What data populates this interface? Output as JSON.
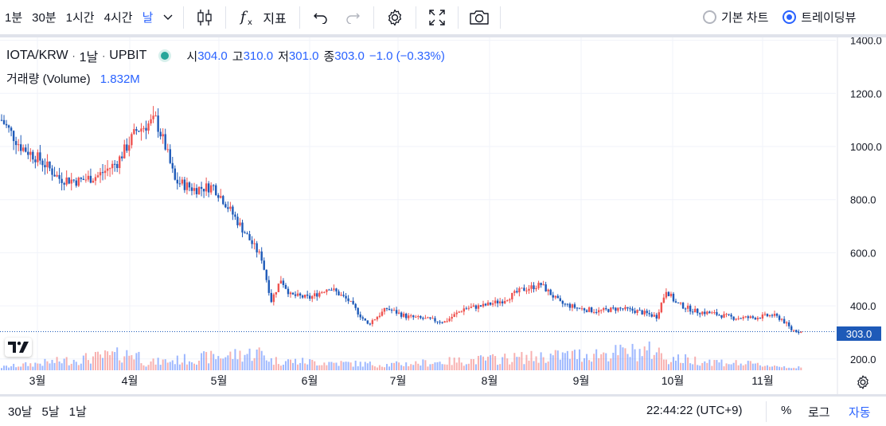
{
  "toolbar": {
    "intervals": [
      "1분",
      "30분",
      "1시간",
      "4시간",
      "날"
    ],
    "active_interval": "날",
    "indicators_label": "지표",
    "chart_modes": [
      "기본 차트",
      "트레이딩뷰"
    ],
    "active_mode": "트레이딩뷰",
    "icons": [
      "chevron-down-icon",
      "candles-icon",
      "fx-icon",
      "undo-icon",
      "redo-icon",
      "settings-gear-icon",
      "fullscreen-icon",
      "camera-icon"
    ]
  },
  "legend": {
    "symbol": "IOTA/KRW",
    "interval": "1날",
    "exchange": "UPBIT",
    "open_label": "시",
    "open": "304.0",
    "high_label": "고",
    "high": "310.0",
    "low_label": "저",
    "low": "301.0",
    "close_label": "종",
    "close": "303.0",
    "change": "−1.0 (−0.33%)",
    "volume_label": "거래량 (Volume)",
    "volume": "1.832M"
  },
  "price_badge": "303.0",
  "bottom": {
    "ranges": [
      "30날",
      "5날",
      "1날"
    ],
    "clock": "22:44:22 (UTC+9)",
    "percent": "%",
    "log": "로그",
    "auto": "자동"
  },
  "colors": {
    "up": "#ef5350",
    "down": "#1e5ab8",
    "accent": "#2962ff",
    "grid": "#f0f3fa"
  },
  "chart_data": {
    "type": "candlestick",
    "y_ticks": [
      "1400.0",
      "1200.0",
      "1000.0",
      "800.0",
      "600.0",
      "400.0",
      "200.0"
    ],
    "x_ticks": [
      "3월",
      "4월",
      "5월",
      "6월",
      "7월",
      "8월",
      "9월",
      "10월",
      "11월"
    ],
    "ylim": [
      180,
      1410
    ],
    "last_price": 303.0,
    "weekly_close_trend": [
      [
        0,
        1100
      ],
      [
        2,
        1000
      ],
      [
        4,
        950
      ],
      [
        6,
        880
      ],
      [
        8,
        870
      ],
      [
        10,
        890
      ],
      [
        12,
        940
      ],
      [
        14,
        1060
      ],
      [
        16,
        1100
      ],
      [
        17,
        1000
      ],
      [
        18,
        870
      ],
      [
        20,
        840
      ],
      [
        22,
        850
      ],
      [
        23,
        800
      ],
      [
        25,
        690
      ],
      [
        27,
        580
      ],
      [
        28,
        420
      ],
      [
        29,
        500
      ],
      [
        30,
        440
      ],
      [
        32,
        430
      ],
      [
        34,
        470
      ],
      [
        36,
        420
      ],
      [
        38,
        330
      ],
      [
        40,
        390
      ],
      [
        42,
        360
      ],
      [
        44,
        350
      ],
      [
        46,
        340
      ],
      [
        48,
        390
      ],
      [
        50,
        400
      ],
      [
        52,
        420
      ],
      [
        54,
        460
      ],
      [
        56,
        480
      ],
      [
        58,
        410
      ],
      [
        60,
        390
      ],
      [
        62,
        380
      ],
      [
        64,
        390
      ],
      [
        66,
        380
      ],
      [
        68,
        360
      ],
      [
        69,
        460
      ],
      [
        70,
        410
      ],
      [
        72,
        380
      ],
      [
        74,
        370
      ],
      [
        76,
        355
      ],
      [
        78,
        355
      ],
      [
        80,
        365
      ],
      [
        81,
        350
      ],
      [
        82,
        310
      ],
      [
        83,
        303
      ]
    ],
    "volume_trend": [
      [
        0,
        0.5
      ],
      [
        14,
        2.8
      ],
      [
        15,
        1.2
      ],
      [
        27,
        2.9
      ],
      [
        28,
        1.6
      ],
      [
        40,
        0.9
      ],
      [
        68,
        3.2
      ],
      [
        69,
        2.0
      ],
      [
        83,
        0.4
      ]
    ],
    "grid": true
  }
}
